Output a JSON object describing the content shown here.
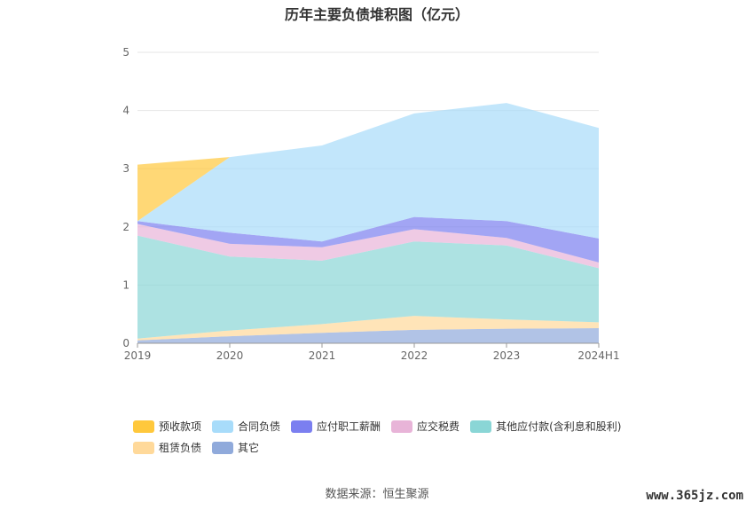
{
  "title": "历年主要负债堆积图（亿元）",
  "source": "数据来源：恒生聚源",
  "watermark": "www.365jz.com",
  "chart_data": {
    "type": "area",
    "stacked": true,
    "categories": [
      "2019",
      "2020",
      "2021",
      "2022",
      "2023",
      "2024H1"
    ],
    "ylim": [
      0,
      5
    ],
    "yticks": [
      "0",
      "1",
      "2",
      "3",
      "4",
      "5"
    ],
    "grid": true,
    "legend_position": "bottom",
    "series": [
      {
        "name": "其它",
        "color": "#90aadb",
        "values": [
          0.05,
          0.12,
          0.18,
          0.23,
          0.25,
          0.26
        ]
      },
      {
        "name": "租赁负债",
        "color": "#ffd99a",
        "values": [
          0.03,
          0.1,
          0.15,
          0.24,
          0.16,
          0.1
        ]
      },
      {
        "name": "其他应付款(含利息和股利)",
        "color": "#8ad6d6",
        "values": [
          1.77,
          1.27,
          1.09,
          1.28,
          1.27,
          0.93
        ]
      },
      {
        "name": "应交税费",
        "color": "#e8b4d8",
        "values": [
          0.2,
          0.22,
          0.23,
          0.21,
          0.13,
          0.1
        ]
      },
      {
        "name": "应付职工薪酬",
        "color": "#7b7ff0",
        "values": [
          0.05,
          0.19,
          0.1,
          0.21,
          0.29,
          0.41
        ]
      },
      {
        "name": "合同负债",
        "color": "#a8dcfa",
        "values": [
          0.0,
          1.3,
          1.65,
          1.78,
          2.03,
          1.9
        ]
      },
      {
        "name": "预收款项",
        "color": "#ffc83c",
        "values": [
          0.97,
          0.0,
          0.0,
          0.0,
          0.0,
          0.0
        ]
      }
    ]
  },
  "legend_rows": [
    [
      {
        "label": "预收款项",
        "color": "#ffc83c"
      },
      {
        "label": "合同负债",
        "color": "#a8dcfa"
      },
      {
        "label": "应付职工薪酬",
        "color": "#7b7ff0"
      },
      {
        "label": "应交税费",
        "color": "#e8b4d8"
      },
      {
        "label": "其他应付款(含利息和股利)",
        "color": "#8ad6d6"
      }
    ],
    [
      {
        "label": "租赁负债",
        "color": "#ffd99a"
      },
      {
        "label": "其它",
        "color": "#90aadb"
      }
    ]
  ]
}
